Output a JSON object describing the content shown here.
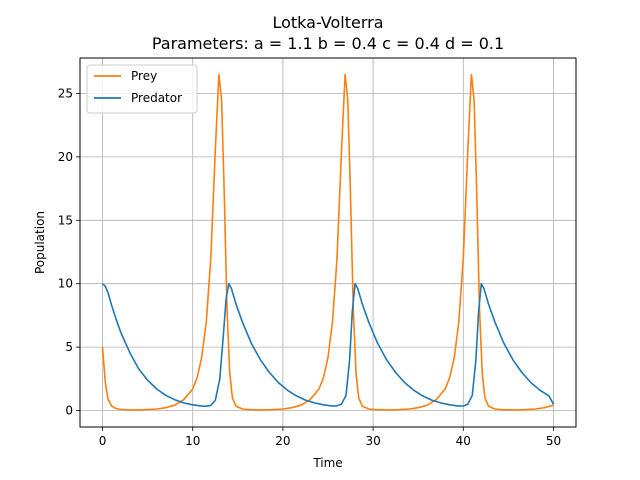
{
  "chart_data": {
    "type": "line",
    "title": "Lotka-Volterra",
    "subtitle": "Parameters: a = 1.1 b = 0.4 c = 0.4 d = 0.1",
    "xlabel": "Time",
    "ylabel": "Population",
    "xlim": [
      -2.5,
      52.5
    ],
    "ylim": [
      -1.3,
      27.8
    ],
    "xticks": [
      0,
      10,
      20,
      30,
      40,
      50
    ],
    "yticks": [
      0,
      5,
      10,
      15,
      20,
      25
    ],
    "grid": true,
    "legend_position": "top-left",
    "series": [
      {
        "name": "Prey",
        "color": "#ff7f0e",
        "points": [
          [
            0,
            5
          ],
          [
            0.3,
            2.2
          ],
          [
            0.6,
            0.9
          ],
          [
            1.0,
            0.35
          ],
          [
            1.5,
            0.15
          ],
          [
            2,
            0.08
          ],
          [
            3,
            0.05
          ],
          [
            4,
            0.05
          ],
          [
            5,
            0.07
          ],
          [
            6,
            0.12
          ],
          [
            7,
            0.22
          ],
          [
            8,
            0.42
          ],
          [
            9,
            0.85
          ],
          [
            10,
            1.7
          ],
          [
            10.5,
            2.6
          ],
          [
            11,
            4.2
          ],
          [
            11.5,
            7.0
          ],
          [
            12,
            12.0
          ],
          [
            12.5,
            20.5
          ],
          [
            12.9,
            26.5
          ],
          [
            13.2,
            24.5
          ],
          [
            13.5,
            17.0
          ],
          [
            13.8,
            8.0
          ],
          [
            14.1,
            3.0
          ],
          [
            14.4,
            1.0
          ],
          [
            14.8,
            0.35
          ],
          [
            15.5,
            0.12
          ],
          [
            16.5,
            0.06
          ],
          [
            18,
            0.05
          ],
          [
            19,
            0.07
          ],
          [
            20,
            0.12
          ],
          [
            21,
            0.22
          ],
          [
            22,
            0.42
          ],
          [
            23,
            0.85
          ],
          [
            24,
            1.7
          ],
          [
            24.5,
            2.6
          ],
          [
            25,
            4.2
          ],
          [
            25.5,
            7.0
          ],
          [
            26,
            12.0
          ],
          [
            26.5,
            20.5
          ],
          [
            26.9,
            26.5
          ],
          [
            27.2,
            24.5
          ],
          [
            27.5,
            17.0
          ],
          [
            27.8,
            8.0
          ],
          [
            28.1,
            3.0
          ],
          [
            28.4,
            1.0
          ],
          [
            28.8,
            0.35
          ],
          [
            29.5,
            0.12
          ],
          [
            30.5,
            0.06
          ],
          [
            32,
            0.05
          ],
          [
            33,
            0.07
          ],
          [
            34,
            0.12
          ],
          [
            35,
            0.22
          ],
          [
            36,
            0.42
          ],
          [
            37,
            0.85
          ],
          [
            38,
            1.7
          ],
          [
            38.5,
            2.6
          ],
          [
            39,
            4.2
          ],
          [
            39.5,
            7.0
          ],
          [
            40,
            12.0
          ],
          [
            40.5,
            20.5
          ],
          [
            40.9,
            26.5
          ],
          [
            41.2,
            24.5
          ],
          [
            41.5,
            17.0
          ],
          [
            41.8,
            8.0
          ],
          [
            42.1,
            3.0
          ],
          [
            42.4,
            1.0
          ],
          [
            42.8,
            0.35
          ],
          [
            43.5,
            0.12
          ],
          [
            44.5,
            0.06
          ],
          [
            46,
            0.05
          ],
          [
            47,
            0.07
          ],
          [
            48,
            0.12
          ],
          [
            49,
            0.22
          ],
          [
            50,
            0.42
          ]
        ]
      },
      {
        "name": "Predator",
        "color": "#1f77b4",
        "points": [
          [
            0,
            10
          ],
          [
            0.3,
            9.8
          ],
          [
            0.6,
            9.3
          ],
          [
            1,
            8.3
          ],
          [
            1.5,
            7.2
          ],
          [
            2,
            6.2
          ],
          [
            3,
            4.6
          ],
          [
            4,
            3.3
          ],
          [
            5,
            2.4
          ],
          [
            6,
            1.7
          ],
          [
            7,
            1.2
          ],
          [
            8,
            0.85
          ],
          [
            9,
            0.6
          ],
          [
            10,
            0.45
          ],
          [
            11,
            0.35
          ],
          [
            11.5,
            0.34
          ],
          [
            12,
            0.4
          ],
          [
            12.5,
            0.8
          ],
          [
            13,
            2.5
          ],
          [
            13.4,
            6.0
          ],
          [
            13.7,
            8.8
          ],
          [
            14.0,
            10.0
          ],
          [
            14.3,
            9.6
          ],
          [
            14.8,
            8.4
          ],
          [
            15.5,
            7.0
          ],
          [
            16.5,
            5.3
          ],
          [
            17.5,
            4.0
          ],
          [
            18.5,
            3.0
          ],
          [
            19.5,
            2.2
          ],
          [
            20.5,
            1.6
          ],
          [
            21.5,
            1.15
          ],
          [
            22.5,
            0.82
          ],
          [
            23.5,
            0.6
          ],
          [
            24.5,
            0.45
          ],
          [
            25.5,
            0.35
          ],
          [
            26,
            0.37
          ],
          [
            26.5,
            0.5
          ],
          [
            27,
            1.2
          ],
          [
            27.4,
            4.0
          ],
          [
            27.7,
            7.8
          ],
          [
            28.0,
            10.0
          ],
          [
            28.3,
            9.6
          ],
          [
            28.8,
            8.4
          ],
          [
            29.5,
            7.0
          ],
          [
            30.5,
            5.3
          ],
          [
            31.5,
            4.0
          ],
          [
            32.5,
            3.0
          ],
          [
            33.5,
            2.2
          ],
          [
            34.5,
            1.6
          ],
          [
            35.5,
            1.15
          ],
          [
            36.5,
            0.82
          ],
          [
            37.5,
            0.6
          ],
          [
            38.5,
            0.45
          ],
          [
            39.5,
            0.35
          ],
          [
            40,
            0.36
          ],
          [
            40.5,
            0.5
          ],
          [
            41,
            1.2
          ],
          [
            41.4,
            4.0
          ],
          [
            41.7,
            7.8
          ],
          [
            42.0,
            10.0
          ],
          [
            42.3,
            9.6
          ],
          [
            42.8,
            8.4
          ],
          [
            43.5,
            7.0
          ],
          [
            44.5,
            5.3
          ],
          [
            45.5,
            4.0
          ],
          [
            46.5,
            3.0
          ],
          [
            47.5,
            2.2
          ],
          [
            48.5,
            1.6
          ],
          [
            49.5,
            1.15
          ],
          [
            50,
            0.5
          ]
        ]
      }
    ]
  }
}
